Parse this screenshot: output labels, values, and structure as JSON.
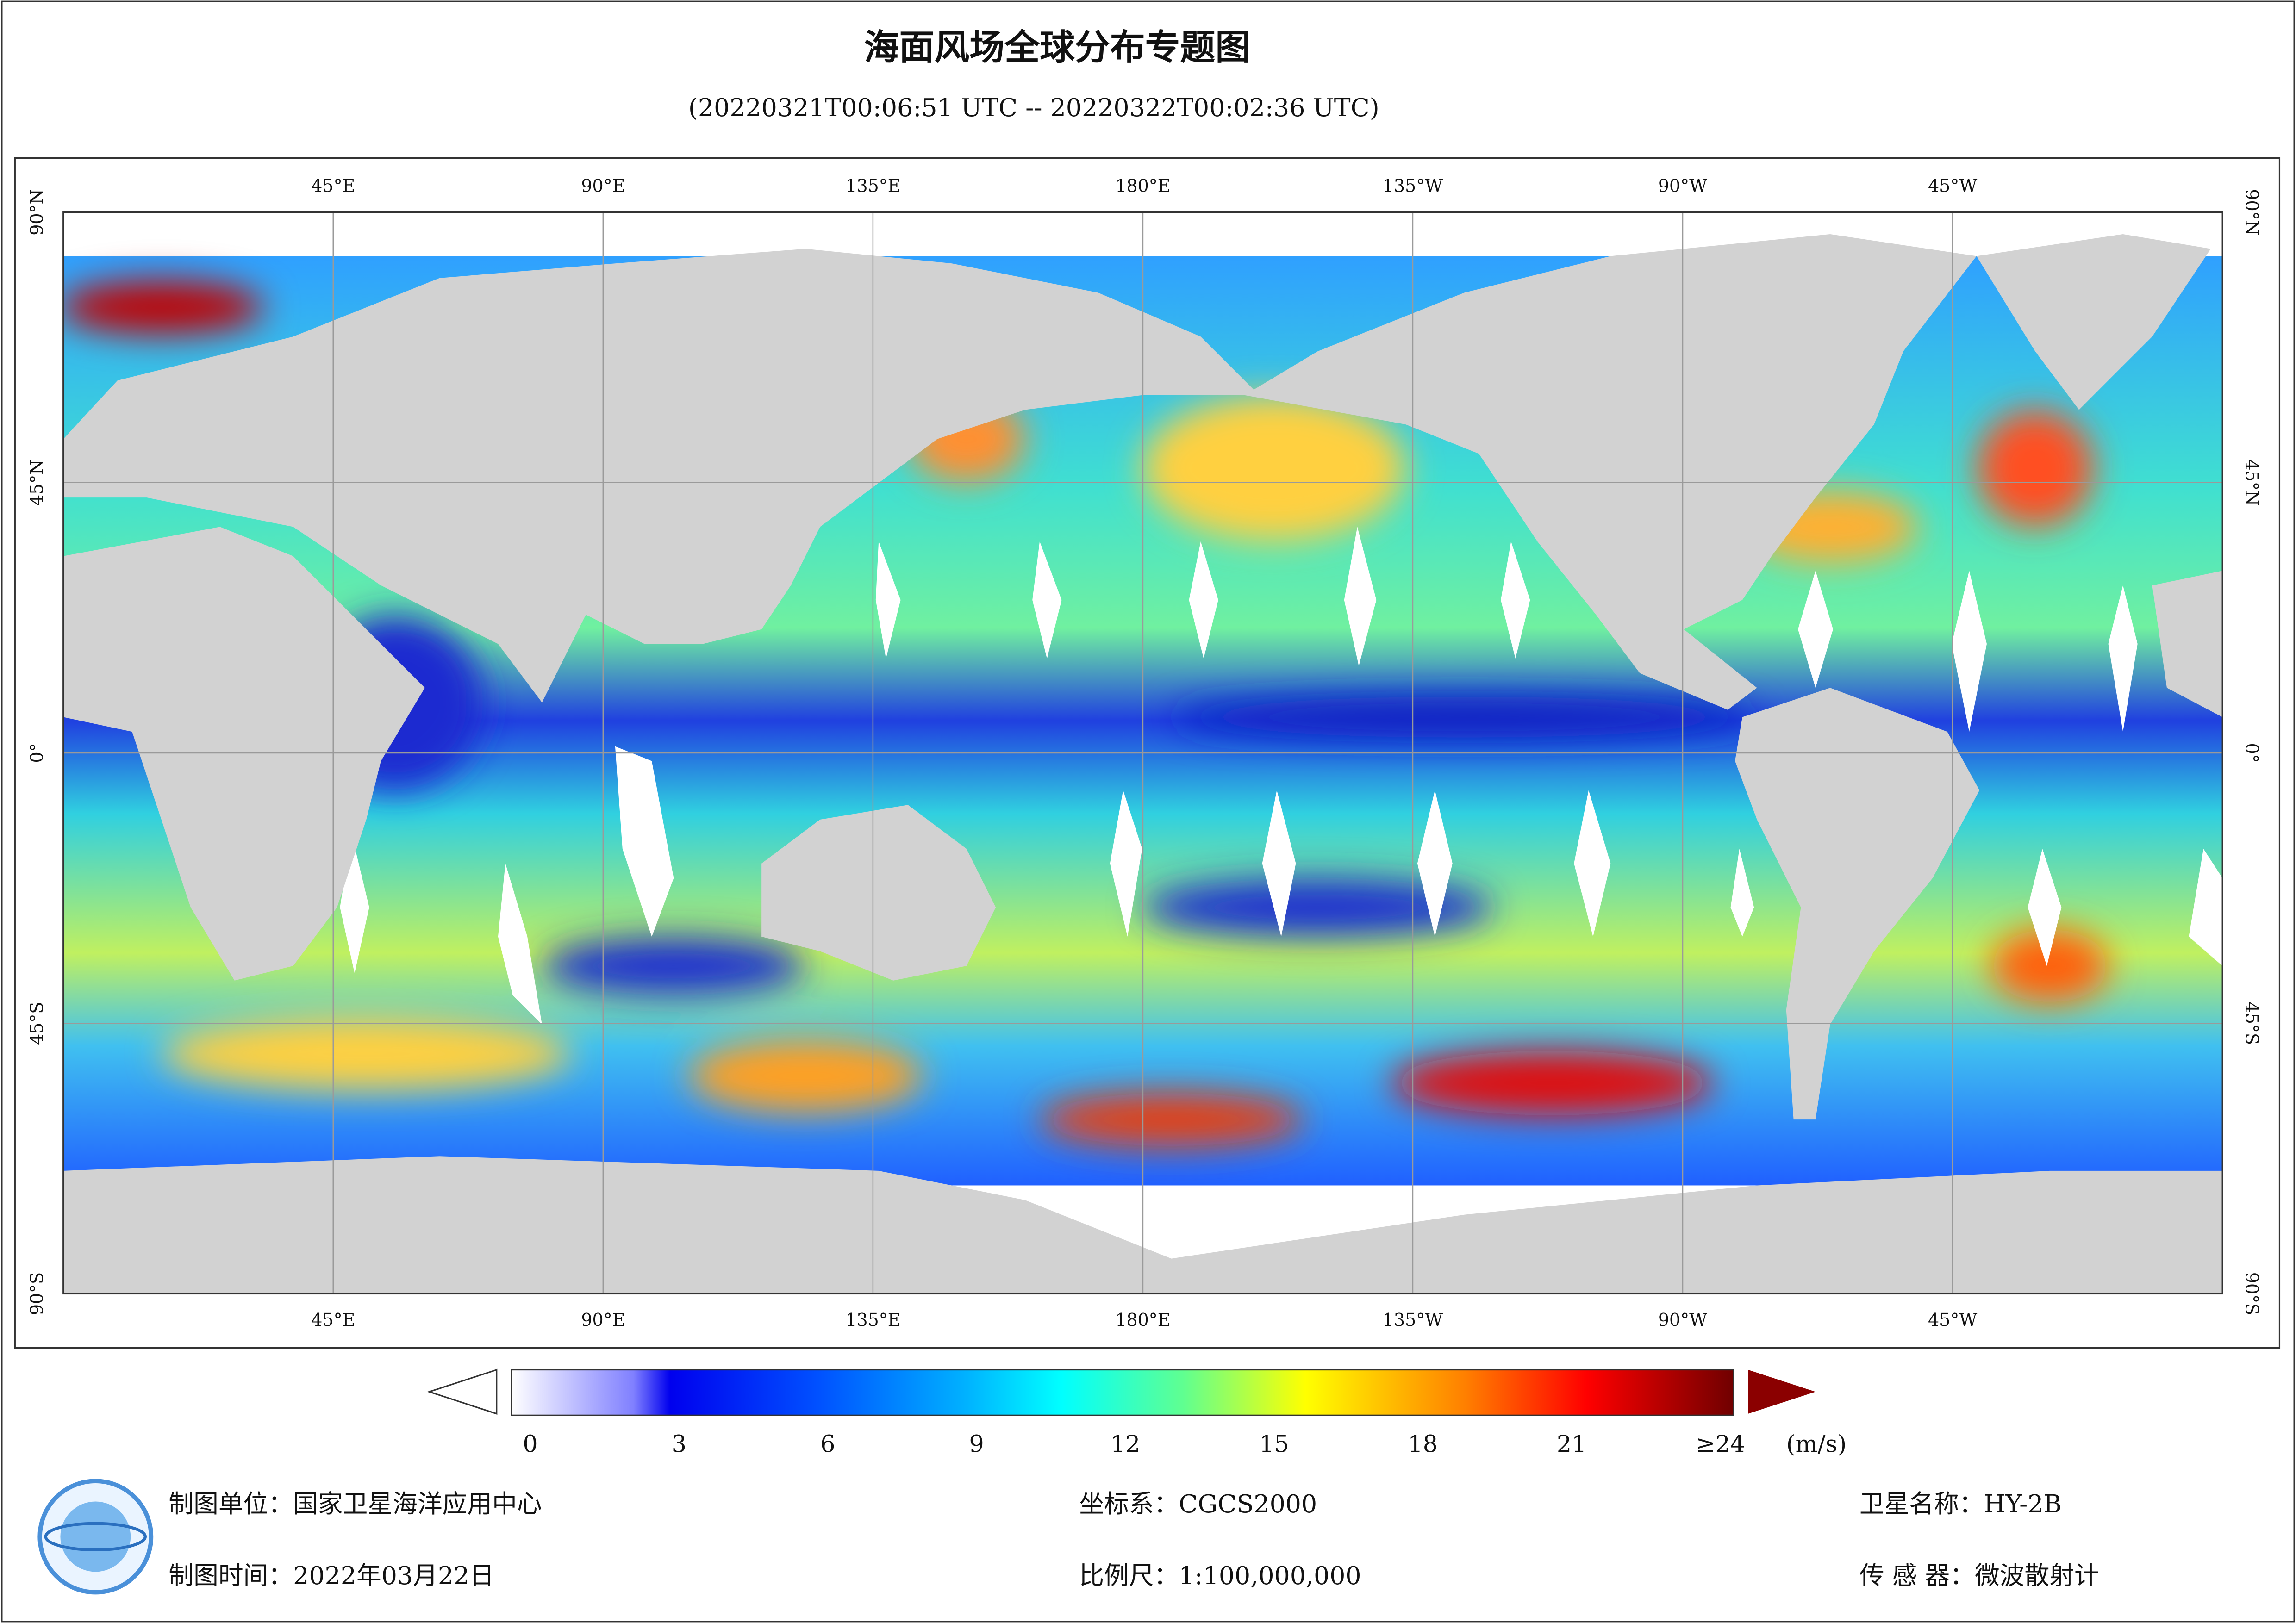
{
  "header": {
    "title": "海面风场全球分布专题图",
    "subtitle": "(20220321T00:06:51 UTC -- 20220322T00:02:36 UTC)"
  },
  "map": {
    "lon_range": [
      0,
      360
    ],
    "lat_range": [
      -90,
      90
    ],
    "lon_ticks": [
      {
        "value": 45,
        "label": "45°E"
      },
      {
        "value": 90,
        "label": "90°E"
      },
      {
        "value": 135,
        "label": "135°E"
      },
      {
        "value": 180,
        "label": "180°E"
      },
      {
        "value": 225,
        "label": "135°W"
      },
      {
        "value": 270,
        "label": "90°W"
      },
      {
        "value": 315,
        "label": "45°W"
      }
    ],
    "lat_ticks": [
      {
        "value": 90,
        "label": "90°N"
      },
      {
        "value": 45,
        "label": "45°N"
      },
      {
        "value": 0,
        "label": "0°"
      },
      {
        "value": -45,
        "label": "45°S"
      },
      {
        "value": -90,
        "label": "90°S"
      }
    ]
  },
  "legend": {
    "range": [
      0,
      24
    ],
    "ticks": [
      0,
      3,
      6,
      9,
      12,
      15,
      18,
      21,
      {
        "value": 24,
        "label": "≥24"
      }
    ],
    "unit": "(m/s)"
  },
  "footer": {
    "unit": "制图单位：国家卫星海洋应用中心",
    "date": "制图时间：2022年03月22日",
    "crs": "坐标系：CGCS2000",
    "scale": "比例尺：1:100,000,000",
    "satellite": "卫星名称：HY-2B",
    "sensor": "传 感 器：微波散射计"
  }
}
